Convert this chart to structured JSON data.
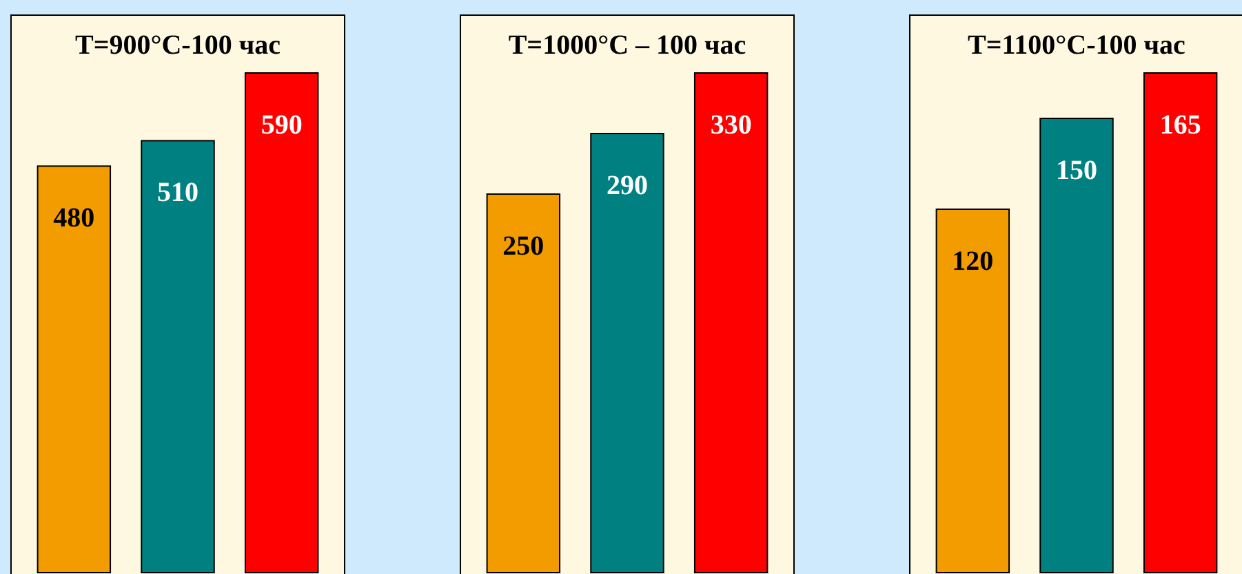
{
  "chart_data": [
    {
      "type": "bar",
      "title": "T=900°C-100 час",
      "categories": [
        null,
        null,
        null
      ],
      "values": [
        480,
        510,
        590
      ],
      "colors": [
        "#f39c00",
        "#008080",
        "#ff0000"
      ],
      "data_labels": true
    },
    {
      "type": "bar",
      "title": "T=1000°C – 100 час",
      "categories": [
        null,
        null,
        null
      ],
      "values": [
        250,
        290,
        330
      ],
      "colors": [
        "#f39c00",
        "#008080",
        "#ff0000"
      ],
      "data_labels": true
    },
    {
      "type": "bar",
      "title": "T=1100°C-100 час",
      "categories": [
        null,
        null,
        null
      ],
      "values": [
        120,
        150,
        165
      ],
      "colors": [
        "#f39c00",
        "#008080",
        "#ff0000"
      ],
      "data_labels": true
    }
  ]
}
